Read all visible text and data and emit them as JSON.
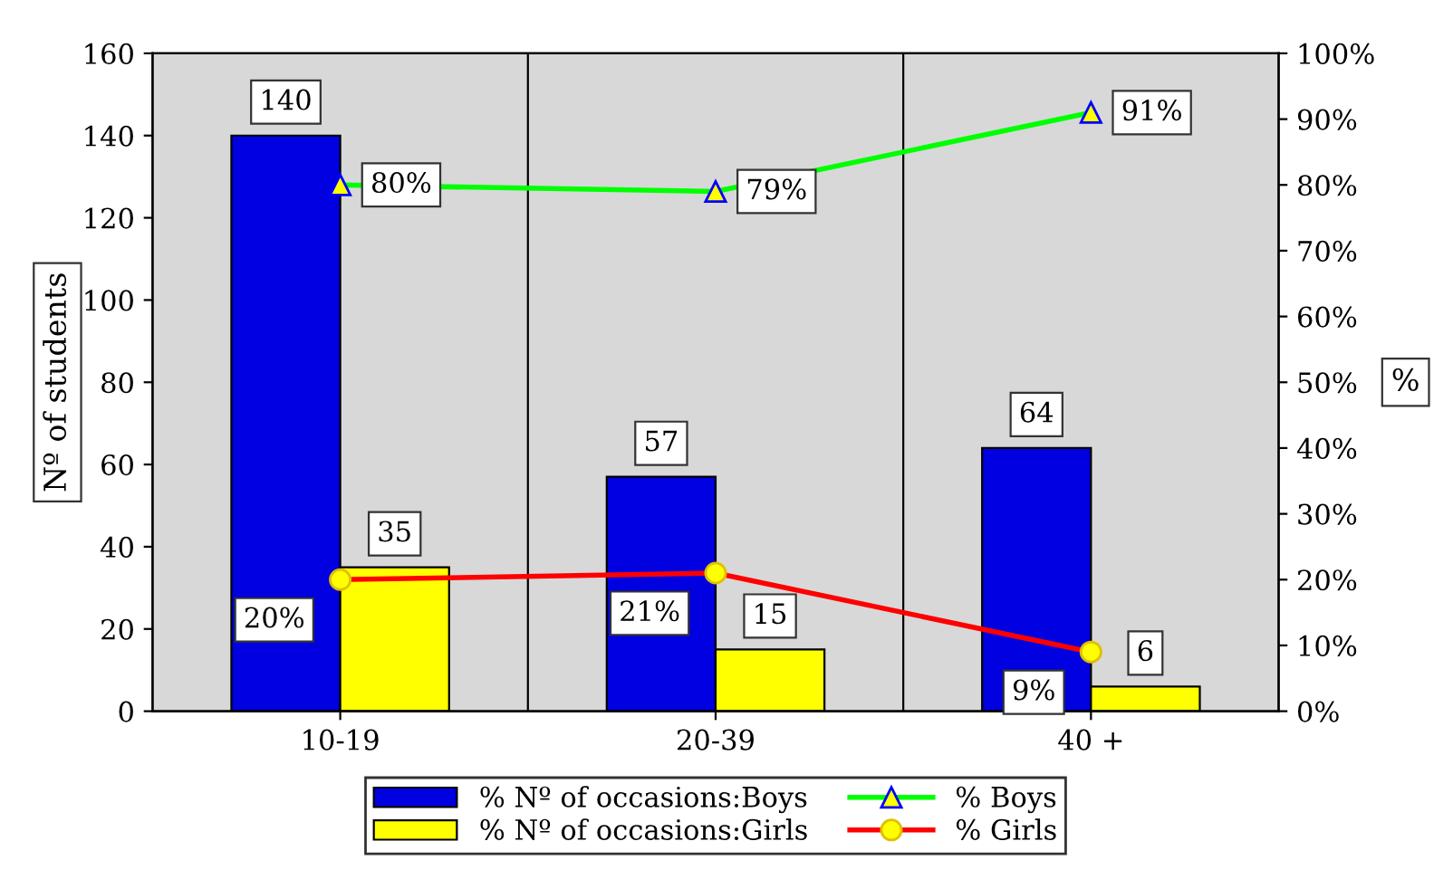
{
  "chart_data": {
    "type": "bar",
    "categories": [
      "10-19",
      "20-39",
      "40 +"
    ],
    "ylabel": "Nº of students",
    "y2label": "%",
    "ylim": [
      0,
      160
    ],
    "yticks": [
      0,
      20,
      40,
      60,
      80,
      100,
      120,
      140,
      160
    ],
    "y2lim": [
      0,
      100
    ],
    "y2ticks": [
      {
        "value": 0,
        "label": "0%"
      },
      {
        "value": 10,
        "label": "10%"
      },
      {
        "value": 20,
        "label": "20%"
      },
      {
        "value": 30,
        "label": "30%"
      },
      {
        "value": 40,
        "label": "40%"
      },
      {
        "value": 50,
        "label": "50%"
      },
      {
        "value": 60,
        "label": "60%"
      },
      {
        "value": 70,
        "label": "70%"
      },
      {
        "value": 80,
        "label": "80%"
      },
      {
        "value": 90,
        "label": "90%"
      },
      {
        "value": 100,
        "label": "100%"
      }
    ],
    "series": [
      {
        "name": "% Nº of occasions:Boys",
        "color": "#0000e0",
        "values": [
          140,
          57,
          64
        ],
        "value_labels": [
          "140",
          "57",
          "64"
        ]
      },
      {
        "name": "% Nº of occasions:Girls",
        "color": "#ffff00",
        "values": [
          35,
          15,
          6
        ],
        "value_labels": [
          "35",
          "15",
          "6"
        ]
      },
      {
        "name": "% Boys",
        "type": "line",
        "axis": "y2",
        "color": "#00ff00",
        "marker": "triangle",
        "values": [
          80,
          79,
          91
        ],
        "value_labels": [
          "80%",
          "79%",
          "91%"
        ]
      },
      {
        "name": "% Girls",
        "type": "line",
        "axis": "y2",
        "color": "#ff0000",
        "marker": "circle",
        "values": [
          20,
          21,
          9
        ],
        "value_labels": [
          "20%",
          "21%",
          "9%"
        ]
      }
    ],
    "legend": "bottom",
    "grid": false
  }
}
